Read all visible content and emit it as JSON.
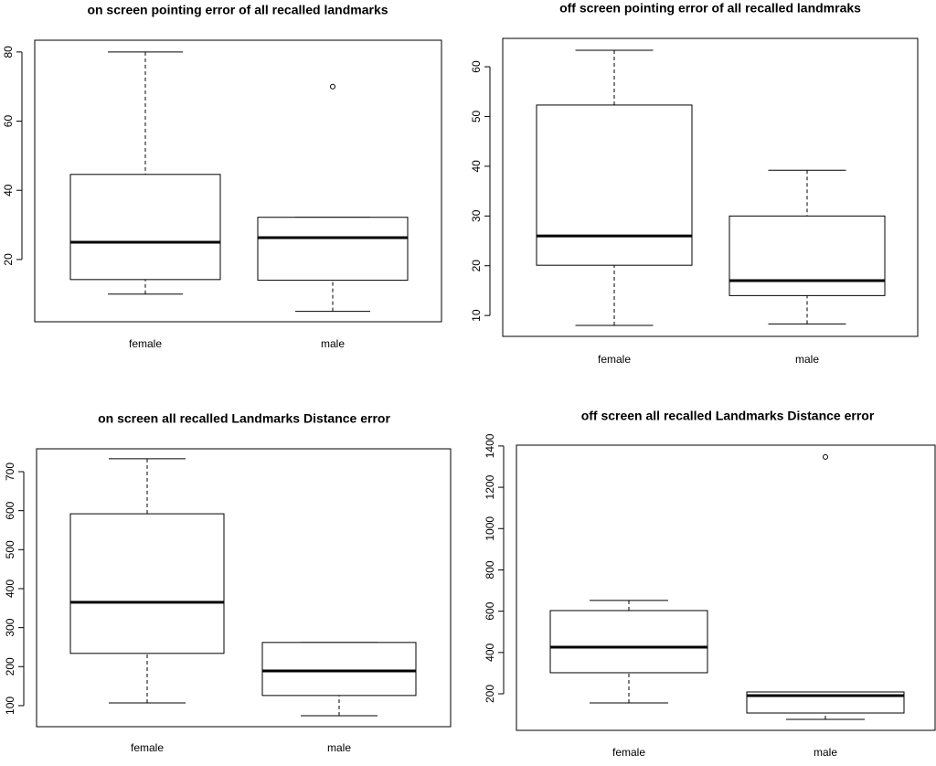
{
  "chart_data": [
    {
      "type": "box",
      "title": "on screen pointing error of all recalled landmarks",
      "categories": [
        "female",
        "male"
      ],
      "boxes": [
        {
          "whisker_low": 10,
          "q1": 14.2,
          "median": 25,
          "q3": 44.6,
          "whisker_high": 80,
          "outliers": []
        },
        {
          "whisker_low": 5,
          "q1": 14,
          "median": 26.3,
          "q3": 32.2,
          "whisker_high": 32.2,
          "outliers": [
            70
          ]
        }
      ],
      "ylim": [
        2,
        83.4
      ],
      "yticks": [
        20,
        40,
        60,
        80
      ]
    },
    {
      "type": "box",
      "title": "off screen pointing error of all recalled landmraks",
      "categories": [
        "female",
        "male"
      ],
      "boxes": [
        {
          "whisker_low": 8,
          "q1": 20.1,
          "median": 26,
          "q3": 52.3,
          "whisker_high": 63.3,
          "outliers": []
        },
        {
          "whisker_low": 8.3,
          "q1": 14,
          "median": 17,
          "q3": 30,
          "whisker_high": 39.2,
          "outliers": []
        }
      ],
      "ylim": [
        5.8,
        65.7
      ],
      "yticks": [
        10,
        20,
        30,
        40,
        50,
        60
      ]
    },
    {
      "type": "box",
      "title": "on screen all recalled  Landmarks Distance error",
      "categories": [
        "female",
        "male"
      ],
      "boxes": [
        {
          "whisker_low": 107,
          "q1": 234,
          "median": 365,
          "q3": 592,
          "whisker_high": 733,
          "outliers": []
        },
        {
          "whisker_low": 74,
          "q1": 126,
          "median": 189,
          "q3": 262,
          "whisker_high": 262,
          "outliers": []
        }
      ],
      "ylim": [
        46,
        758.6
      ],
      "yticks": [
        100,
        200,
        300,
        400,
        500,
        600,
        700
      ]
    },
    {
      "type": "box",
      "title": "off screen all recalled  Landmarks Distance error",
      "categories": [
        "female",
        "male"
      ],
      "boxes": [
        {
          "whisker_low": 156,
          "q1": 302,
          "median": 426,
          "q3": 603,
          "whisker_high": 652,
          "outliers": []
        },
        {
          "whisker_low": 76,
          "q1": 107,
          "median": 191,
          "q3": 209,
          "whisker_high": 209,
          "outliers": [
            1347
          ]
        }
      ],
      "ylim": [
        23,
        1404
      ],
      "yticks": [
        200,
        400,
        600,
        800,
        1000,
        1200,
        1400
      ]
    }
  ]
}
